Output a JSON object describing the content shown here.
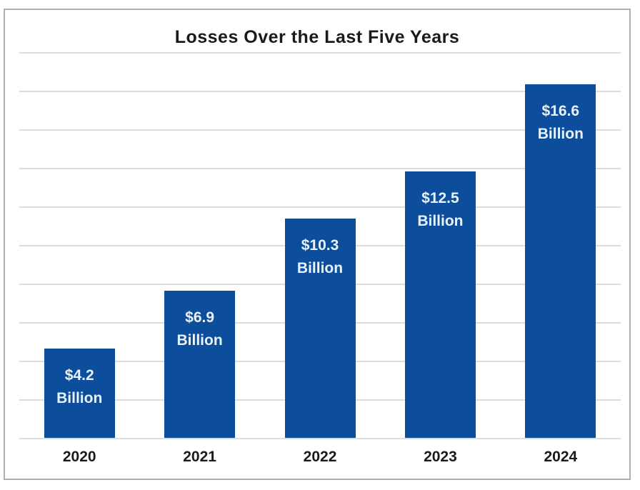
{
  "chart_data": {
    "type": "bar",
    "title": "Losses Over the Last Five Years",
    "categories": [
      "2020",
      "2021",
      "2022",
      "2023",
      "2024"
    ],
    "values": [
      4.2,
      6.9,
      10.3,
      12.5,
      16.6
    ],
    "value_labels": [
      [
        "$4.2",
        "Billion"
      ],
      [
        "$6.9",
        "Billion"
      ],
      [
        "$10.3",
        "Billion"
      ],
      [
        "$12.5",
        "Billion"
      ],
      [
        "$16.6",
        "Billion"
      ]
    ],
    "xlabel": "",
    "ylabel": "",
    "ylim": [
      0,
      18.1
    ],
    "gridline_count": 11,
    "grid": "horizontal",
    "legend_position": "none",
    "colors": {
      "bar": "#0c4e9b",
      "bar_label_text": "#eaf3fc",
      "axis_text": "#1a1a1a",
      "gridline": "#dcdcdc",
      "frame_border": "#b0b0b0",
      "background": "#ffffff"
    }
  }
}
